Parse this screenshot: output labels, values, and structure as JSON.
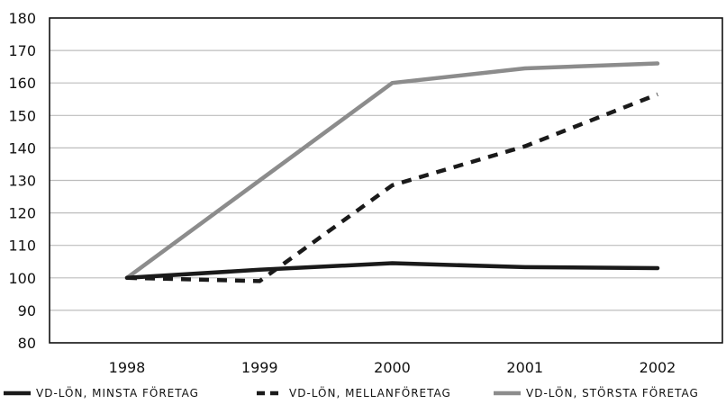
{
  "chart_data": {
    "type": "line",
    "title": "",
    "xlabel": "",
    "ylabel": "",
    "categories": [
      "1998",
      "1999",
      "2000",
      "2001",
      "2002"
    ],
    "ylim": [
      80,
      180
    ],
    "yticks": [
      80,
      90,
      100,
      110,
      120,
      130,
      140,
      150,
      160,
      170,
      180
    ],
    "grid": true,
    "legend_position": "bottom",
    "series": [
      {
        "name": "VD-LÖN, MINSTA FÖRETAG",
        "values": [
          100,
          102.5,
          104.5,
          103.3,
          103
        ],
        "color": "#1a1a1a",
        "style": "solid"
      },
      {
        "name": "VD-LÖN, MELLANFÖRETAG",
        "values": [
          100,
          99,
          128.5,
          140.5,
          156.5
        ],
        "color": "#1a1a1a",
        "style": "dashed"
      },
      {
        "name": "VD-LÖN, STÖRSTA FÖRETAG",
        "values": [
          100,
          130,
          160,
          164.5,
          166
        ],
        "color": "#8c8c8c",
        "style": "solid"
      }
    ]
  }
}
